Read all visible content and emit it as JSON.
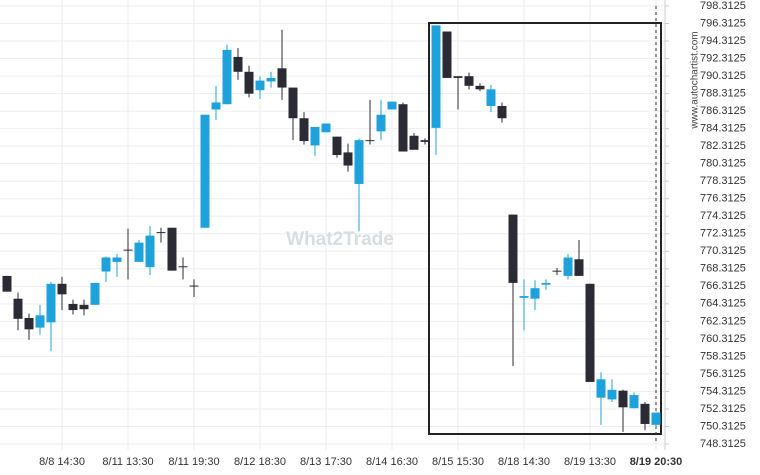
{
  "chart_data": {
    "type": "candlestick",
    "watermark": "What2Trade",
    "source": "www.autochartist.com",
    "categories": [
      null,
      null,
      null,
      null,
      null,
      "8/8 14:30",
      null,
      null,
      null,
      null,
      null,
      "8/11 13:30",
      null,
      null,
      null,
      null,
      null,
      "8/11 19:30",
      null,
      null,
      null,
      null,
      null,
      "8/12 18:30",
      null,
      null,
      null,
      null,
      null,
      "8/13 17:30",
      null,
      null,
      null,
      null,
      null,
      "8/14 16:30",
      null,
      null,
      null,
      null,
      null,
      "8/15 15:30",
      null,
      null,
      null,
      null,
      null,
      "8/18 14:30",
      null,
      null,
      null,
      null,
      null,
      "8/19 13:30",
      null,
      null,
      null,
      null,
      null,
      "8/19 20:30"
    ],
    "open": [
      767.5,
      764.9,
      762.7,
      761.6,
      762.2,
      766.6,
      764.3,
      764.2,
      764.2,
      768.0,
      769.1,
      770.5,
      769.1,
      768.5,
      772.5,
      773.0,
      768.6,
      766.4,
      773.0,
      786.5,
      787.1,
      792.5,
      790.8,
      788.7,
      789.7,
      791.2,
      789.0,
      785.5,
      782.4,
      783.9,
      783.4,
      781.6,
      778.0,
      783.0,
      784.0,
      786.5,
      787.1,
      783.5,
      783.0,
      784.4,
      795.4,
      790.3,
      790.3,
      789.2,
      786.9,
      786.9,
      774.5,
      765.0,
      764.9,
      766.5,
      768.1,
      767.5,
      769.4,
      766.6,
      753.6,
      753.4,
      754.4,
      752.4,
      752.9,
      750.5
    ],
    "high": [
      767.5,
      765.6,
      763.2,
      764.2,
      766.8,
      767.4,
      764.8,
      764.8,
      766.7,
      769.7,
      770.0,
      772.9,
      771.6,
      773.2,
      773.0,
      773.0,
      769.6,
      767.1,
      785.9,
      789.2,
      793.9,
      793.5,
      791.5,
      790.3,
      790.8,
      795.6,
      789.0,
      786.2,
      784.5,
      784.9,
      783.4,
      782.6,
      783.2,
      787.6,
      787.6,
      787.4,
      787.3,
      783.8,
      783.2,
      796.1,
      795.4,
      790.3,
      790.7,
      789.5,
      789.3,
      787.3,
      774.5,
      767.1,
      767.0,
      767.1,
      768.4,
      770.0,
      771.6,
      766.6,
      756.5,
      755.7,
      754.5,
      754.2,
      753.1,
      751.9
    ],
    "low": [
      765.7,
      761.3,
      760.2,
      760.8,
      758.9,
      763.6,
      763.1,
      763.0,
      764.2,
      766.8,
      767.4,
      767.1,
      769.1,
      767.6,
      771.3,
      768.1,
      767.1,
      765.1,
      773.0,
      785.3,
      787.1,
      789.9,
      787.9,
      787.7,
      789.0,
      787.6,
      783.0,
      782.5,
      781.2,
      783.9,
      781.0,
      779.4,
      772.6,
      782.5,
      783.0,
      786.5,
      781.7,
      781.9,
      782.5,
      781.3,
      790.1,
      786.5,
      788.8,
      788.6,
      786.2,
      785.0,
      757.2,
      761.3,
      763.6,
      765.9,
      767.6,
      767.1,
      767.5,
      755.4,
      750.5,
      753.1,
      749.7,
      752.4,
      749.9,
      750.3
    ],
    "close": [
      765.7,
      762.6,
      761.4,
      763.0,
      766.6,
      765.4,
      763.6,
      763.7,
      766.7,
      769.6,
      769.6,
      770.4,
      771.3,
      772.1,
      772.4,
      768.1,
      768.5,
      766.3,
      785.9,
      787.3,
      793.3,
      790.8,
      788.3,
      789.8,
      790.1,
      789.0,
      785.5,
      782.9,
      784.5,
      784.9,
      781.3,
      780.1,
      783.0,
      782.9,
      785.9,
      787.4,
      781.7,
      781.9,
      782.8,
      796.1,
      790.1,
      790.1,
      789.2,
      788.8,
      788.8,
      785.5,
      766.7,
      765.2,
      766.1,
      766.7,
      768.0,
      769.6,
      767.5,
      755.4,
      755.7,
      754.5,
      752.5,
      753.9,
      750.6,
      751.9
    ],
    "up_color": "#1ea2dc",
    "down_color": "#2b2b36",
    "ylim": [
      748.3125,
      798.3125
    ],
    "yticks": [
      748.3125,
      750.3125,
      752.3125,
      754.3125,
      756.3125,
      758.3125,
      760.3125,
      762.3125,
      764.3125,
      766.3125,
      768.3125,
      770.3125,
      772.3125,
      774.3125,
      776.3125,
      778.3125,
      780.3125,
      782.3125,
      784.3125,
      786.3125,
      788.3125,
      790.3125,
      792.3125,
      794.3125,
      796.3125,
      798.3125
    ],
    "grid": true
  }
}
